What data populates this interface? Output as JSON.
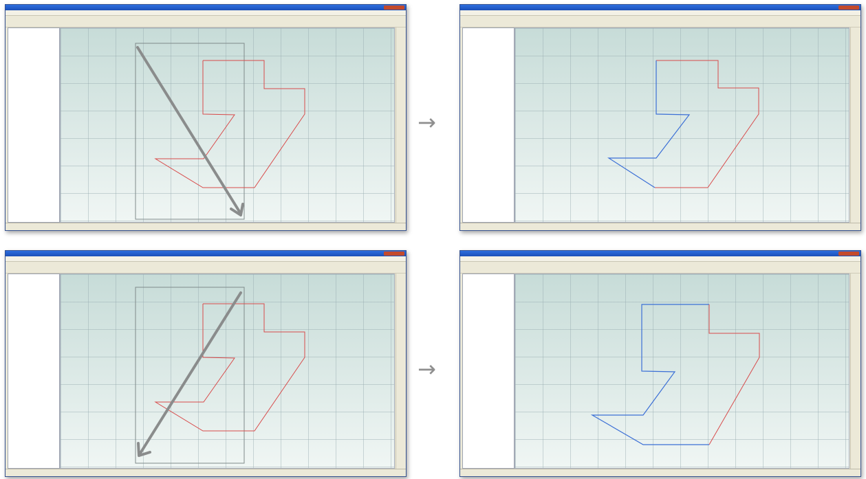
{
  "arrows": {
    "right": "→"
  },
  "colors": {
    "selected_line": "#3b6fd6",
    "unselected_line": "#d84a4a",
    "drag_arrow": "#8a8c8c",
    "selection_box": "#7f8a8a"
  },
  "panels": [
    {
      "id": "top-left",
      "polyline_mode": "before",
      "drag": "down-right"
    },
    {
      "id": "top-right",
      "polyline_mode": "after-crossing",
      "drag": "none"
    },
    {
      "id": "bottom-left",
      "polyline_mode": "before",
      "drag": "down-left"
    },
    {
      "id": "bottom-right",
      "polyline_mode": "after-window",
      "drag": "none"
    }
  ]
}
